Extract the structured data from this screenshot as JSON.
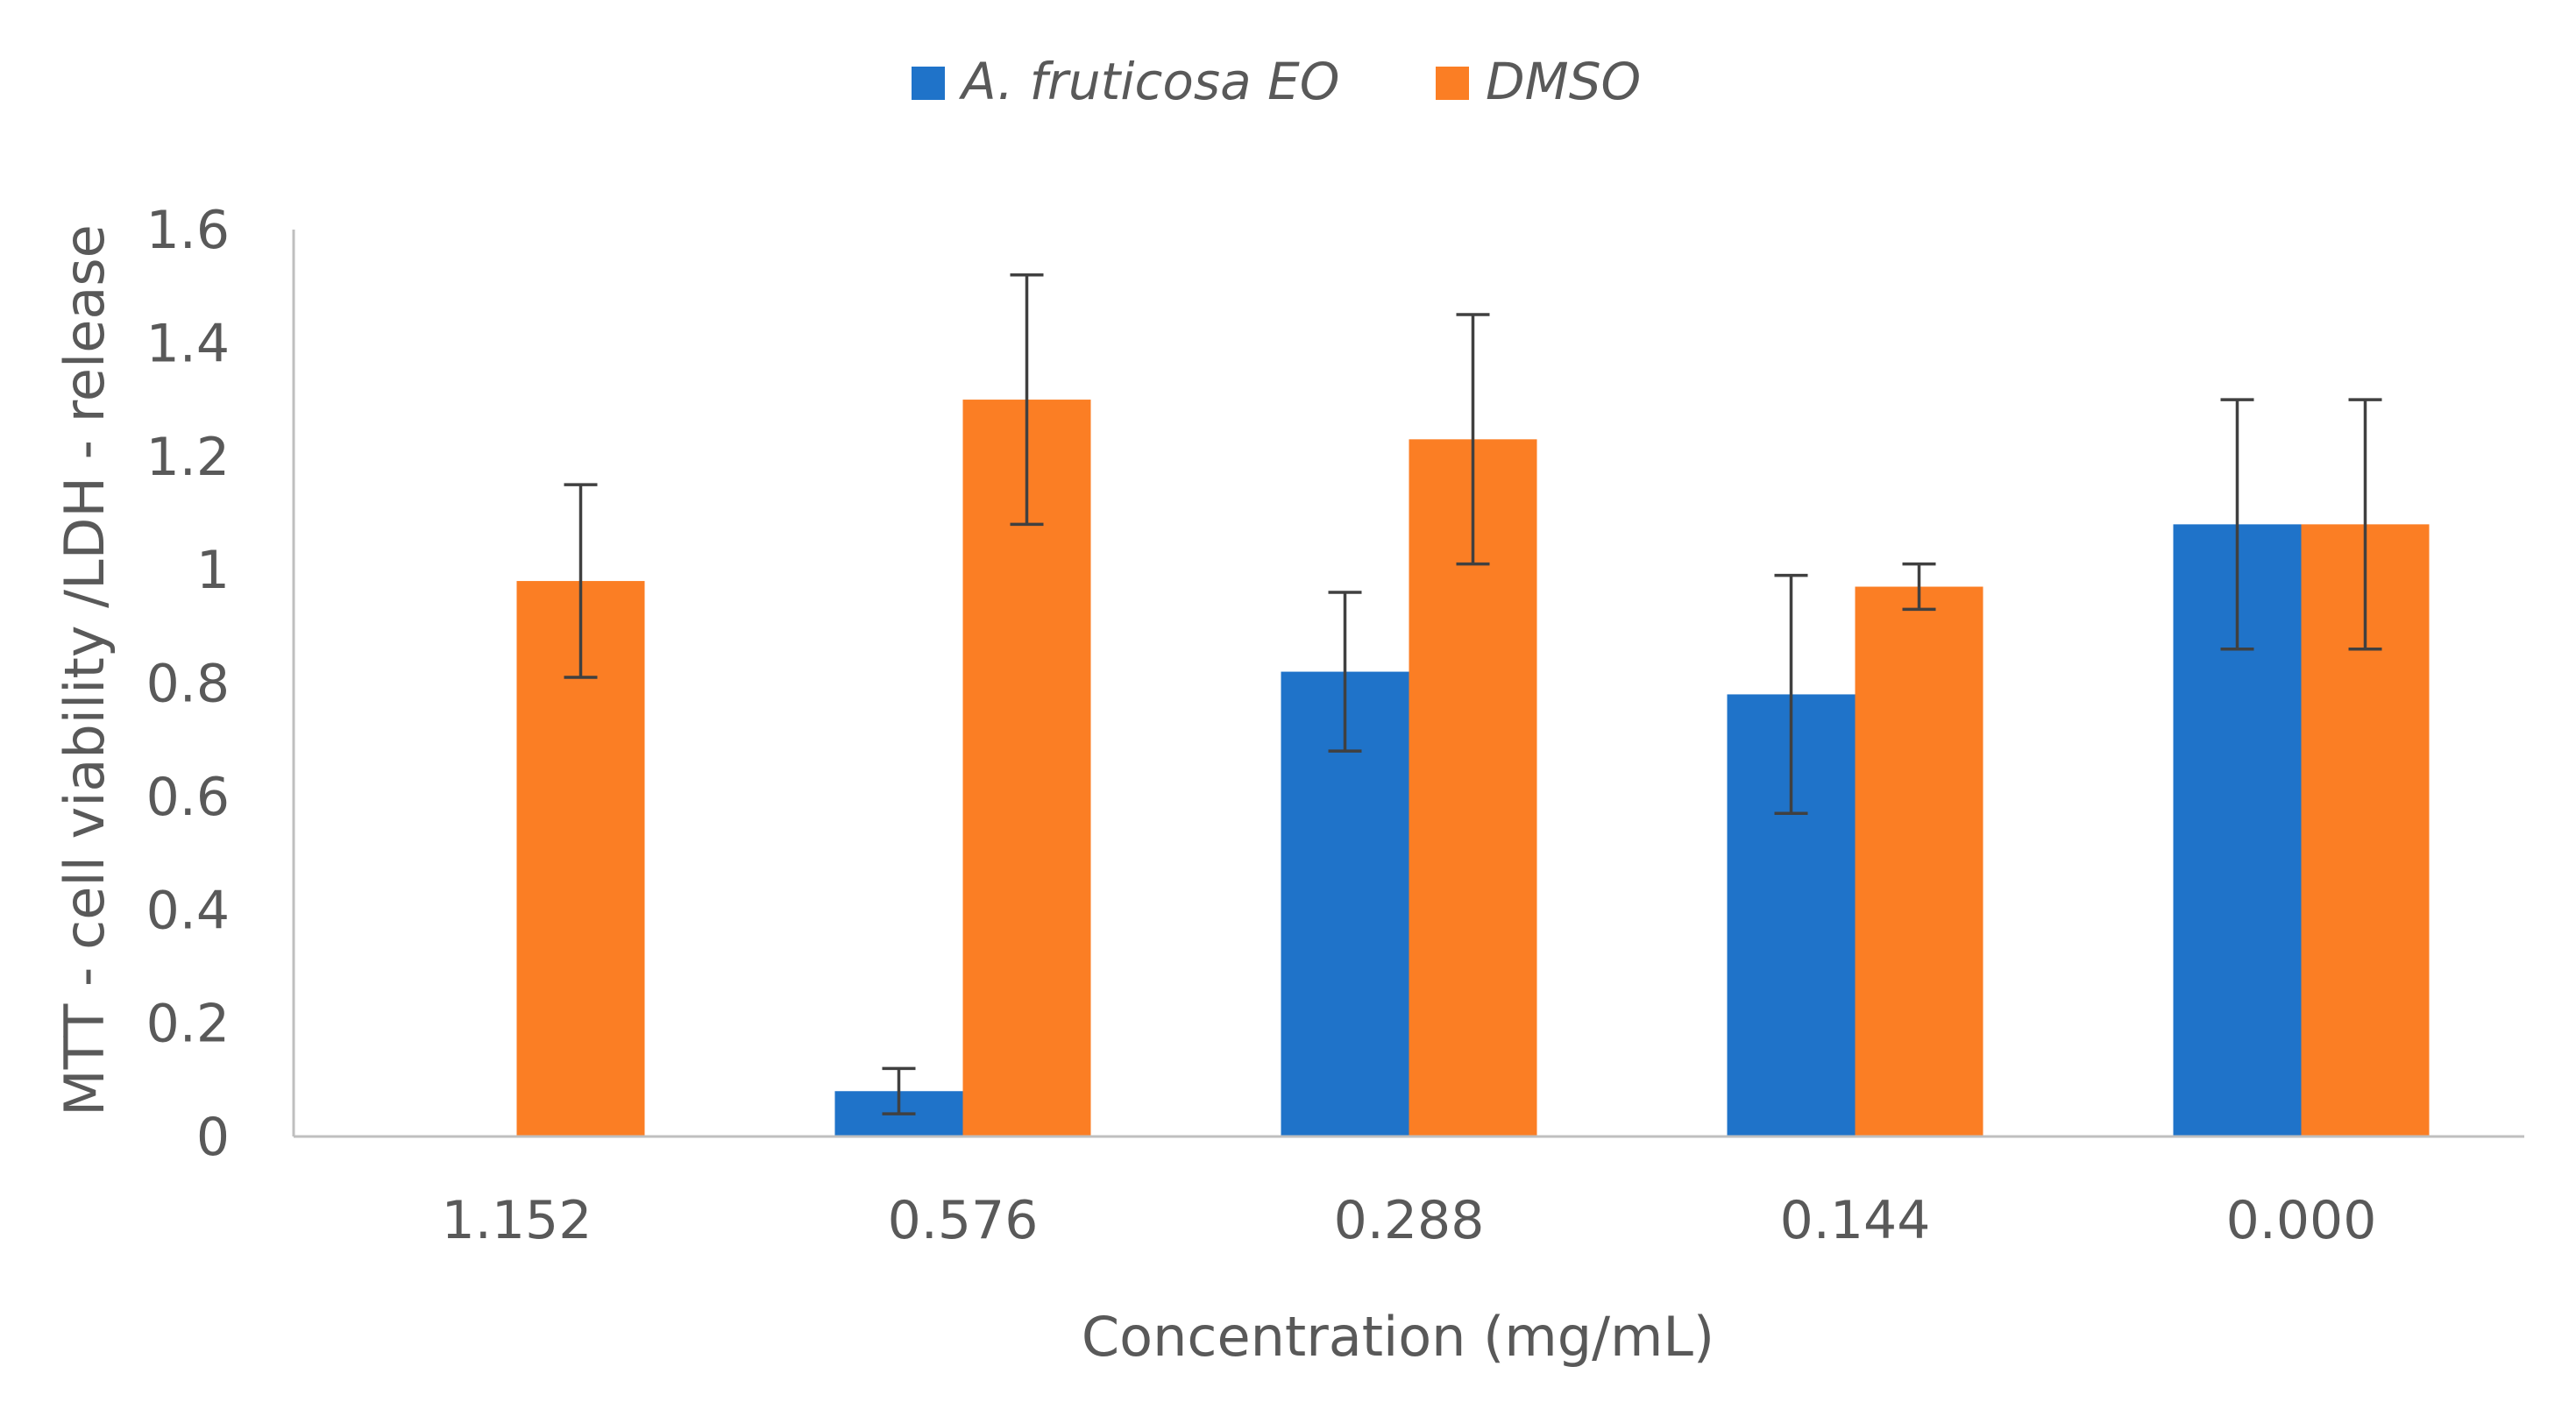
{
  "chart_data": {
    "type": "bar",
    "title": "",
    "xlabel": "Concentration (mg/mL)",
    "ylabel": "MTT - cell viability /LDH - release",
    "categories": [
      "1.152",
      "0.576",
      "0.288",
      "0.144",
      "0.000"
    ],
    "ylim": [
      0,
      1.6
    ],
    "yticks": [
      0,
      0.2,
      0.4,
      0.6,
      0.8,
      1,
      1.2,
      1.4,
      1.6
    ],
    "ytick_labels": [
      "0",
      "0.2",
      "0.4",
      "0.6",
      "0.8",
      "1",
      "1.2",
      "1.4",
      "1.6"
    ],
    "grid": false,
    "legend_position": "top-center",
    "series": [
      {
        "name": "A. fruticosa EO",
        "color": "#1f73c9",
        "values": [
          0.0,
          0.08,
          0.82,
          0.78,
          1.08
        ],
        "errors": [
          0.0,
          0.04,
          0.14,
          0.21,
          0.22
        ]
      },
      {
        "name": "DMSO",
        "color": "#fb7e24",
        "values": [
          0.98,
          1.3,
          1.23,
          0.97,
          1.08
        ],
        "errors": [
          0.17,
          0.22,
          0.22,
          0.04,
          0.22
        ]
      }
    ],
    "axis_color": "#bfbfbf",
    "error_bar_color": "#404040"
  }
}
